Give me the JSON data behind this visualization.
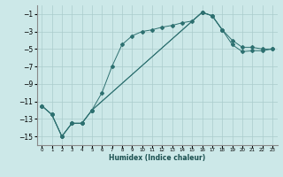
{
  "xlabel": "Humidex (Indice chaleur)",
  "ylabel": "",
  "background_color": "#cce8e8",
  "grid_color": "#aacccc",
  "line_color": "#2d7070",
  "xlim": [
    -0.5,
    23.5
  ],
  "ylim": [
    -16,
    0
  ],
  "xticks": [
    0,
    1,
    2,
    3,
    4,
    5,
    6,
    7,
    8,
    9,
    10,
    11,
    12,
    13,
    14,
    15,
    16,
    17,
    18,
    19,
    20,
    21,
    22,
    23
  ],
  "yticks": [
    -15,
    -13,
    -11,
    -9,
    -7,
    -5,
    -3,
    -1
  ],
  "series": [
    {
      "x": [
        0,
        1,
        2,
        3,
        4,
        5,
        6,
        7,
        8,
        9,
        10,
        11,
        12,
        13,
        14,
        15,
        16,
        17,
        18
      ],
      "y": [
        -11.5,
        -12.5,
        -15.0,
        -13.5,
        -13.5,
        -12.0,
        -10.0,
        -7.0,
        -4.5,
        -3.5,
        -3.0,
        -2.8,
        -2.5,
        -2.3,
        -2.0,
        -1.8,
        -0.8,
        -1.2,
        -2.8
      ]
    },
    {
      "x": [
        0,
        1,
        2,
        3,
        4,
        5,
        16,
        17,
        18,
        19,
        20,
        21,
        22,
        23
      ],
      "y": [
        -11.5,
        -12.5,
        -15.0,
        -13.5,
        -13.5,
        -12.0,
        -0.8,
        -1.2,
        -2.8,
        -4.0,
        -4.8,
        -4.8,
        -5.0,
        -5.0
      ]
    },
    {
      "x": [
        0,
        1,
        2,
        3,
        4,
        5,
        16,
        17,
        18,
        19,
        20,
        21,
        22,
        23
      ],
      "y": [
        -11.5,
        -12.5,
        -15.0,
        -13.5,
        -13.5,
        -12.0,
        -0.8,
        -1.2,
        -2.8,
        -4.5,
        -5.3,
        -5.2,
        -5.2,
        -5.0
      ]
    }
  ]
}
